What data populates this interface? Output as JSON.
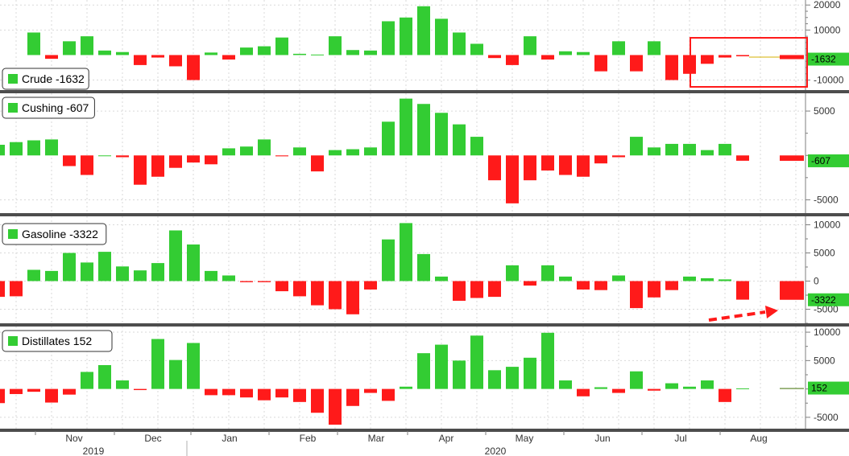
{
  "colors": {
    "positive": "#33cc33",
    "negative": "#ff1a1a",
    "latest_positive": "#4d7a16",
    "highlight": "#ff1a1a",
    "label_bg": "#33cc33"
  },
  "x_axis": {
    "month_labels": [
      "Nov",
      "Dec",
      "Jan",
      "Feb",
      "Mar",
      "Apr",
      "May",
      "Jun",
      "Jul",
      "Aug"
    ],
    "month_start_index": [
      0,
      5,
      10,
      14,
      18,
      23,
      27,
      32,
      36,
      40
    ],
    "year_labels": [
      "2019",
      "2020"
    ],
    "year_label_month": [
      "Nov",
      "May"
    ]
  },
  "chart_data": [
    {
      "type": "bar",
      "title": "Crude -1632",
      "series_name": "Crude",
      "latest_value": -1632,
      "latest_label": "-1632",
      "ylim": [
        -14000,
        22000
      ],
      "yticks": [
        20000,
        10000,
        -10000
      ],
      "values": [
        9000,
        -1500,
        5500,
        7500,
        1800,
        1200,
        -4000,
        -1000,
        -4500,
        -10000,
        1000,
        -1800,
        3000,
        3500,
        7000,
        500,
        200,
        7500,
        2000,
        1800,
        13500,
        15000,
        19500,
        14500,
        9000,
        4500,
        -1200,
        -4000,
        7500,
        -1800,
        1500,
        1200,
        -6500,
        5500,
        -6500,
        5500,
        -10000,
        -7500,
        -3500,
        -1000,
        -500,
        -1632
      ],
      "highlight_box": true
    },
    {
      "type": "bar",
      "title": "Cushing -607",
      "series_name": "Cushing",
      "latest_value": -607,
      "latest_label": "-607",
      "ylim": [
        -6500,
        7000
      ],
      "yticks": [
        5000,
        -5000
      ],
      "values": [
        1200,
        1500,
        1700,
        1800,
        -1200,
        -2200,
        0,
        -200,
        -3300,
        -2400,
        -1400,
        -800,
        -1000,
        800,
        1000,
        1800,
        -100,
        900,
        -1800,
        600,
        700,
        900,
        3800,
        6400,
        5800,
        4800,
        3500,
        2100,
        -2800,
        -5400,
        -2800,
        -1700,
        -2200,
        -2400,
        -900,
        -200,
        2100,
        900,
        1300,
        1300,
        600,
        1300,
        -600,
        -607
      ]
    },
    {
      "type": "bar",
      "title": "Gasoline -3322",
      "series_name": "Gasoline",
      "latest_value": -3322,
      "latest_label": "-3322",
      "ylim": [
        -7500,
        11500
      ],
      "yticks": [
        10000,
        5000,
        0,
        -5000
      ],
      "values": [
        -4000,
        -3000,
        -2800,
        -2700,
        2000,
        1800,
        5000,
        3300,
        5200,
        2600,
        1900,
        3200,
        9000,
        6500,
        1800,
        1000,
        -200,
        -200,
        -1800,
        -2700,
        -4300,
        -5000,
        -5900,
        -1500,
        7400,
        10300,
        4800,
        800,
        -3500,
        -3000,
        -2800,
        2800,
        -800,
        2800,
        800,
        -1500,
        -1600,
        1000,
        -4800,
        -2900,
        -1600,
        800,
        500,
        300,
        -3300,
        -3322
      ],
      "arrow": true
    },
    {
      "type": "bar",
      "title": "Distillates 152",
      "series_name": "Distillates",
      "latest_value": 152,
      "latest_label": "152",
      "ylim": [
        -7000,
        11000
      ],
      "yticks": [
        10000,
        5000,
        -5000
      ],
      "values": [
        -3600,
        -2500,
        -900,
        -500,
        -2400,
        -1000,
        3000,
        4200,
        1500,
        -200,
        8800,
        5100,
        8100,
        -1100,
        -1100,
        -1500,
        -2000,
        -1500,
        -2300,
        -4200,
        -6300,
        -3000,
        -700,
        -2100,
        400,
        6300,
        7800,
        5000,
        9400,
        3300,
        3900,
        5500,
        9900,
        1500,
        -1300,
        300,
        -700,
        3100,
        -300,
        1000,
        400,
        1500,
        -2300,
        100,
        152
      ]
    }
  ]
}
